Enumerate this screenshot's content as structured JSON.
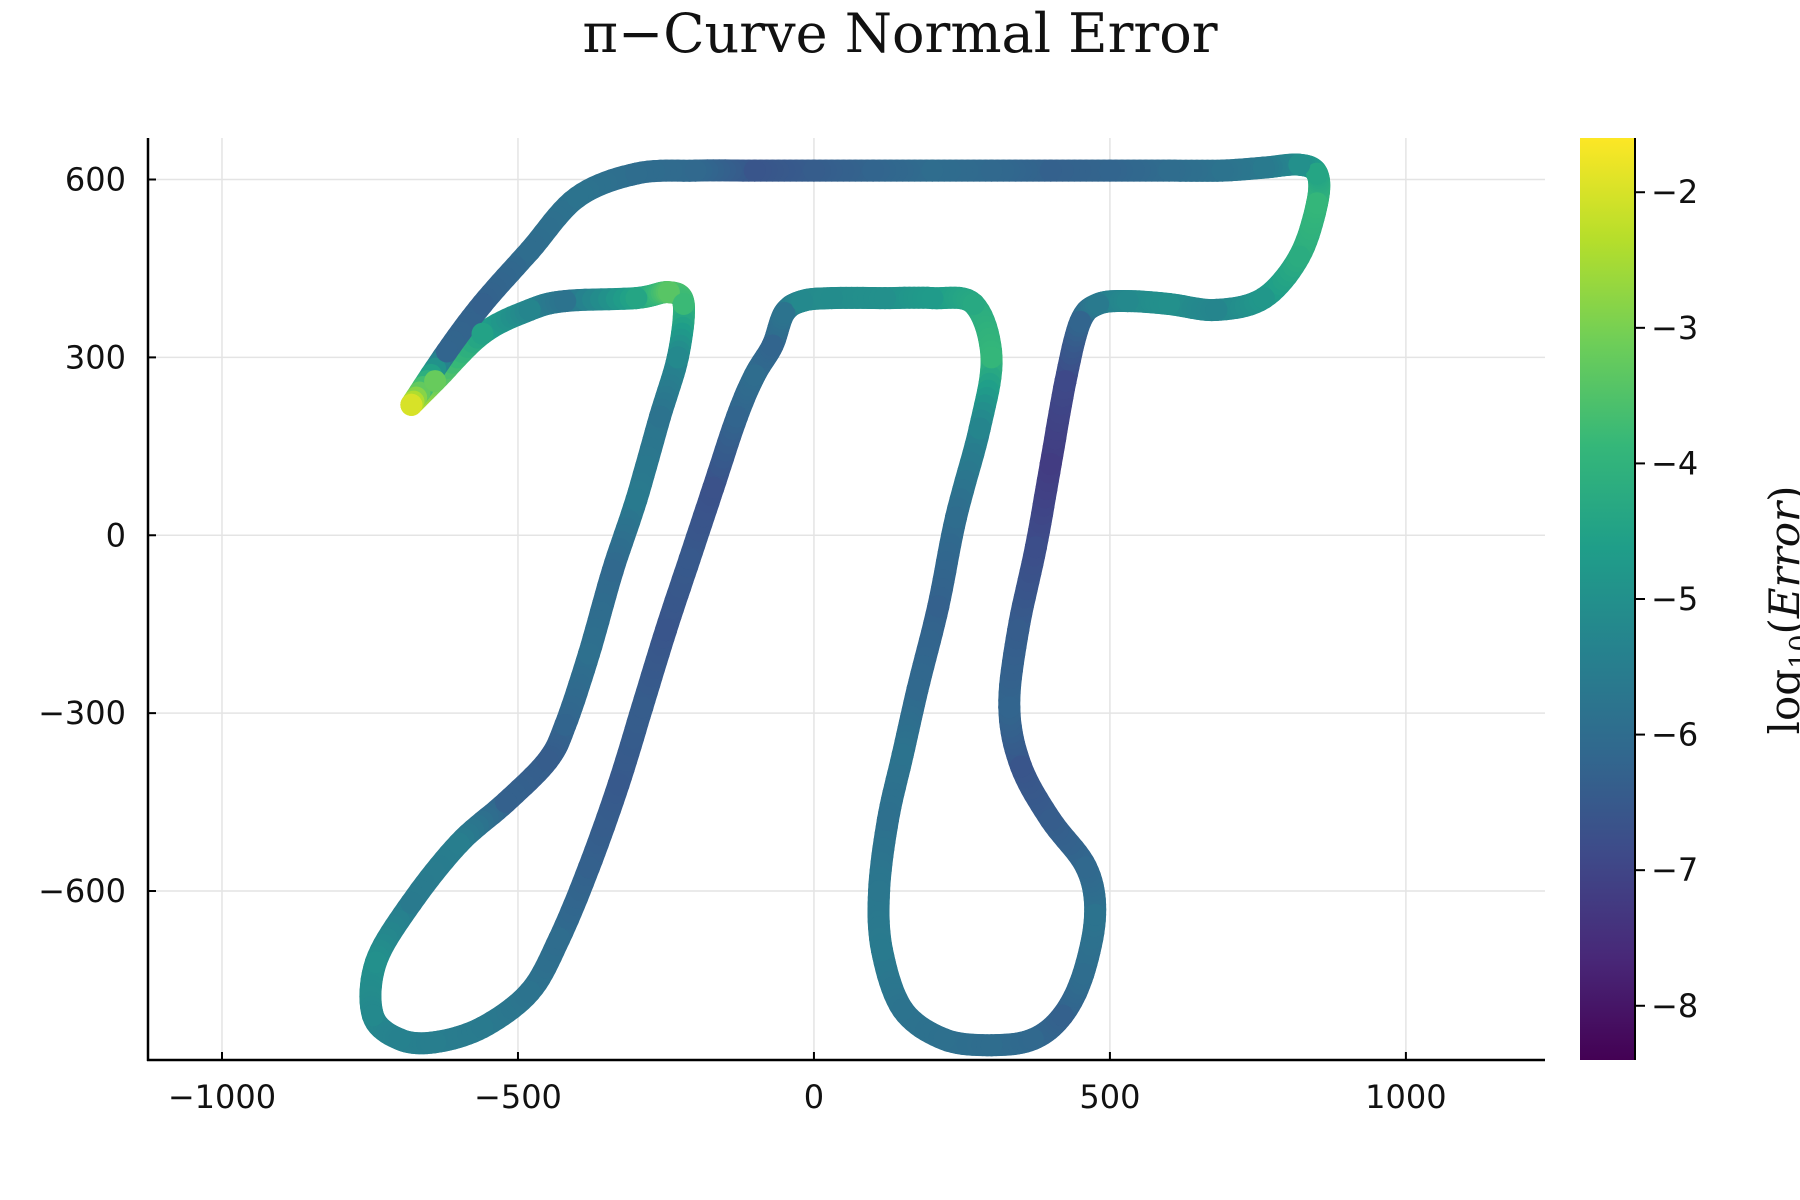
{
  "chart_data": {
    "type": "scatter",
    "title": "π−Curve Normal Error",
    "xlabel": "",
    "ylabel": "",
    "xlim": [
      -1125,
      1235
    ],
    "ylim": [
      -885,
      670
    ],
    "xticks": [
      -1000,
      -500,
      0,
      500,
      1000
    ],
    "xtick_labels": [
      "−1000",
      "−500",
      "0",
      "500",
      "1000"
    ],
    "yticks": [
      -600,
      -300,
      0,
      300,
      600
    ],
    "ytick_labels": [
      "−600",
      "−300",
      "0",
      "300",
      "600"
    ],
    "grid": true,
    "legend": "none",
    "colorbar": {
      "label_prefix": "log",
      "label_sub": "10",
      "label_open": "(",
      "label_var": "Error",
      "label_close": ")",
      "range": [
        -8.4,
        -1.6
      ],
      "ticks": [
        -2,
        -3,
        -4,
        -5,
        -6,
        -7,
        -8
      ],
      "tick_labels": [
        "−2",
        "−3",
        "−4",
        "−5",
        "−6",
        "−7",
        "−8"
      ],
      "colormap": "viridis",
      "colors": [
        "#440154",
        "#482878",
        "#3e4a89",
        "#31688e",
        "#26828e",
        "#1f9e89",
        "#35b779",
        "#6ece58",
        "#b5de2b",
        "#fde725"
      ]
    },
    "series": [
      {
        "x": [
          -680,
          -640,
          -560,
          -480,
          -420,
          -300,
          -245,
          -220,
          -230,
          -260,
          -300,
          -340,
          -380,
          -420,
          -450,
          -520,
          -600,
          -680,
          -740,
          -745,
          -700,
          -640,
          -560,
          -480,
          -430,
          -380,
          -330,
          -290,
          -250,
          -210,
          -170,
          -130,
          -100,
          -70,
          -50,
          -20,
          30,
          120,
          200,
          270,
          300,
          280,
          240,
          210,
          175,
          150,
          125,
          110,
          115,
          150,
          220,
          300,
          370,
          420,
          455,
          475,
          460,
          400,
          350,
          330,
          345,
          375,
          400,
          425,
          450,
          480,
          530,
          600,
          680,
          760,
          820,
          850,
          850,
          820,
          760,
          690,
          600,
          500,
          400,
          300,
          200,
          100,
          0,
          -100,
          -200,
          -300,
          -400,
          -480,
          -560,
          -620,
          -680
        ],
        "y": [
          220,
          260,
          340,
          380,
          395,
          400,
          410,
          390,
          300,
          200,
          60,
          -60,
          -200,
          -320,
          -380,
          -450,
          -520,
          -620,
          -720,
          -810,
          -850,
          -855,
          -830,
          -770,
          -680,
          -560,
          -420,
          -290,
          -160,
          -40,
          80,
          200,
          270,
          320,
          375,
          395,
          400,
          400,
          400,
          390,
          300,
          180,
          30,
          -120,
          -260,
          -370,
          -480,
          -600,
          -700,
          -800,
          -850,
          -860,
          -850,
          -810,
          -740,
          -640,
          -560,
          -480,
          -390,
          -290,
          -160,
          -20,
          120,
          260,
          360,
          390,
          395,
          390,
          380,
          400,
          470,
          560,
          610,
          625,
          620,
          615,
          615,
          615,
          615,
          615,
          615,
          615,
          615,
          615,
          615,
          610,
          570,
          480,
          390,
          310,
          220
        ],
        "log10_error": [
          -1.9,
          -3.2,
          -4.5,
          -5.3,
          -5.8,
          -4.4,
          -3.4,
          -3.8,
          -5.2,
          -5.8,
          -5.6,
          -6.1,
          -5.9,
          -6.2,
          -6.4,
          -6.3,
          -5.5,
          -5.6,
          -5.0,
          -5.2,
          -5.4,
          -5.5,
          -5.6,
          -5.8,
          -6.0,
          -6.3,
          -6.5,
          -6.4,
          -6.6,
          -6.5,
          -6.7,
          -6.2,
          -6.0,
          -6.2,
          -5.8,
          -5.2,
          -5.1,
          -5.0,
          -4.7,
          -4.3,
          -3.9,
          -5.3,
          -6.0,
          -6.3,
          -6.1,
          -5.8,
          -5.9,
          -5.7,
          -5.6,
          -5.8,
          -5.9,
          -6.0,
          -6.1,
          -6.3,
          -6.0,
          -5.8,
          -6.1,
          -6.4,
          -6.6,
          -6.2,
          -6.4,
          -6.8,
          -7.2,
          -6.9,
          -6.2,
          -5.6,
          -5.2,
          -5.0,
          -5.3,
          -4.8,
          -4.2,
          -3.9,
          -4.4,
          -5.0,
          -5.6,
          -5.8,
          -6.0,
          -6.2,
          -6.3,
          -6.1,
          -6.0,
          -6.2,
          -6.4,
          -6.6,
          -6.1,
          -6.0,
          -5.8,
          -6.0,
          -6.3,
          -6.2,
          -2.0
        ]
      }
    ]
  }
}
